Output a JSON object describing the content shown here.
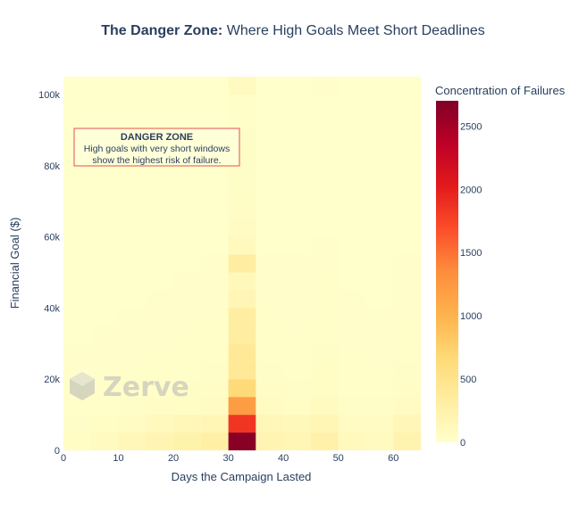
{
  "chart_data": {
    "type": "heatmap",
    "title_bold": "The Danger Zone:",
    "title_rest": " Where High Goals Meet Short Deadlines",
    "xlabel": "Days the Campaign Lasted",
    "ylabel": "Financial Goal ($)",
    "xlim": [
      0,
      65
    ],
    "ylim": [
      0,
      105000
    ],
    "x_ticks": [
      0,
      10,
      20,
      30,
      40,
      50,
      60
    ],
    "x_tick_labels": [
      "0",
      "10",
      "20",
      "30",
      "40",
      "50",
      "60"
    ],
    "y_ticks": [
      0,
      20000,
      40000,
      60000,
      80000,
      100000
    ],
    "y_tick_labels": [
      "0",
      "20k",
      "40k",
      "60k",
      "80k",
      "100k"
    ],
    "grid": false,
    "legend_placement": "right",
    "bin_width_days": 5,
    "bin_height_goal": 5000,
    "x_bin_starts": [
      0,
      5,
      10,
      15,
      20,
      25,
      30,
      35,
      40,
      45,
      50,
      55,
      60
    ],
    "y_bin_starts": [
      0,
      5000,
      10000,
      15000,
      20000,
      25000,
      30000,
      35000,
      40000,
      45000,
      50000,
      55000,
      60000,
      65000,
      70000,
      75000,
      80000,
      85000,
      90000,
      95000,
      100000
    ],
    "z": [
      [
        60,
        90,
        150,
        200,
        250,
        290,
        2650,
        200,
        180,
        260,
        120,
        100,
        220
      ],
      [
        40,
        60,
        80,
        110,
        150,
        170,
        1850,
        150,
        130,
        180,
        80,
        70,
        160
      ],
      [
        20,
        30,
        40,
        50,
        60,
        80,
        1200,
        80,
        60,
        90,
        40,
        35,
        80
      ],
      [
        15,
        20,
        25,
        30,
        40,
        50,
        650,
        50,
        40,
        60,
        30,
        25,
        50
      ],
      [
        10,
        15,
        20,
        25,
        30,
        40,
        420,
        40,
        30,
        60,
        20,
        20,
        40
      ],
      [
        10,
        10,
        15,
        20,
        25,
        30,
        400,
        30,
        25,
        40,
        20,
        15,
        30
      ],
      [
        5,
        10,
        10,
        15,
        20,
        25,
        320,
        25,
        20,
        30,
        15,
        10,
        25
      ],
      [
        5,
        5,
        10,
        10,
        15,
        20,
        330,
        20,
        15,
        25,
        10,
        10,
        20
      ],
      [
        5,
        5,
        5,
        10,
        10,
        15,
        180,
        15,
        10,
        20,
        10,
        5,
        15
      ],
      [
        5,
        5,
        5,
        5,
        10,
        10,
        130,
        10,
        10,
        20,
        5,
        5,
        10
      ],
      [
        5,
        5,
        5,
        5,
        5,
        10,
        330,
        10,
        10,
        15,
        5,
        5,
        10
      ],
      [
        2,
        2,
        5,
        5,
        5,
        5,
        110,
        5,
        5,
        10,
        5,
        5,
        5
      ],
      [
        2,
        2,
        2,
        5,
        5,
        5,
        70,
        5,
        5,
        5,
        2,
        2,
        5
      ],
      [
        2,
        2,
        2,
        2,
        5,
        5,
        55,
        5,
        5,
        5,
        2,
        2,
        5
      ],
      [
        2,
        2,
        2,
        2,
        2,
        5,
        45,
        5,
        5,
        5,
        2,
        2,
        5
      ],
      [
        2,
        2,
        2,
        2,
        2,
        2,
        40,
        2,
        2,
        5,
        2,
        2,
        5
      ],
      [
        2,
        2,
        2,
        2,
        2,
        2,
        45,
        2,
        2,
        5,
        2,
        2,
        5
      ],
      [
        2,
        2,
        2,
        2,
        2,
        2,
        35,
        2,
        2,
        5,
        2,
        2,
        2
      ],
      [
        2,
        2,
        2,
        2,
        2,
        2,
        30,
        2,
        2,
        5,
        2,
        2,
        2
      ],
      [
        2,
        2,
        2,
        2,
        2,
        2,
        30,
        2,
        2,
        5,
        2,
        2,
        2
      ],
      [
        2,
        2,
        2,
        2,
        2,
        2,
        90,
        2,
        2,
        10,
        2,
        2,
        5
      ]
    ],
    "colorscale": [
      "#ffffcc",
      "#ffeda0",
      "#fed976",
      "#feb24c",
      "#fd8d3c",
      "#fc4e2a",
      "#e31a1c",
      "#bd0026",
      "#800026"
    ],
    "zmin": 0,
    "zmax": 2700,
    "colorbar": {
      "title": "Concentration of Failures",
      "ticks": [
        0,
        500,
        1000,
        1500,
        2000,
        2500
      ],
      "tick_labels": [
        "0",
        "500",
        "1000",
        "1500",
        "2000",
        "2500"
      ]
    },
    "annotation": {
      "title": "DANGER ZONE",
      "line1": "High goals with very short windows",
      "line2": "show the highest risk of failure.",
      "border_color": "#e05050"
    },
    "watermark": "Zerve"
  }
}
